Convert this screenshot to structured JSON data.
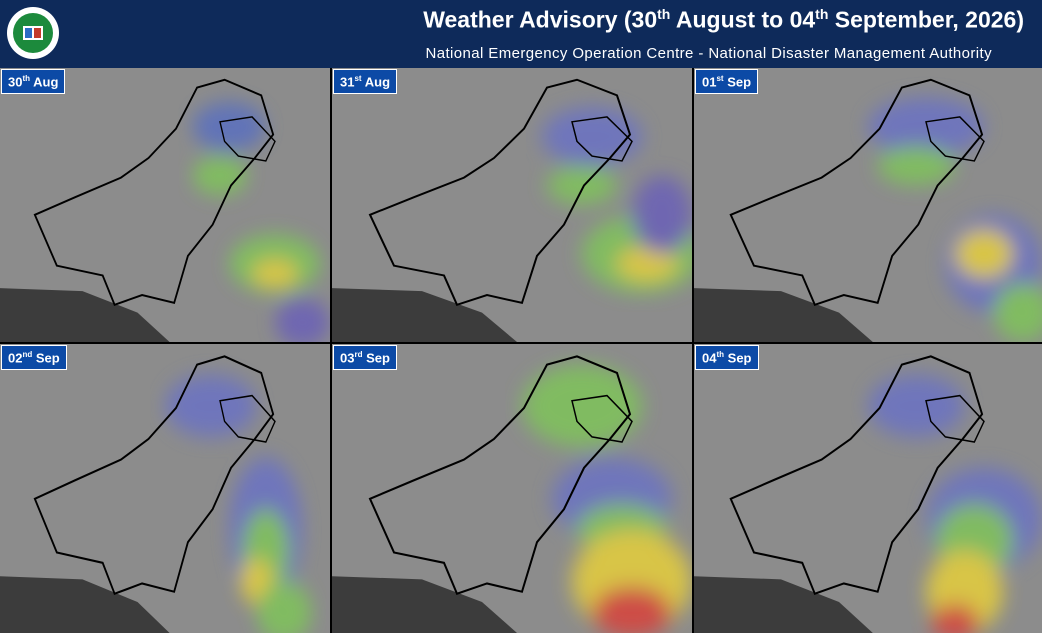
{
  "header": {
    "title": [
      "Weather Advisory (30",
      "th",
      " August to 04",
      "th",
      " September, 2026)"
    ],
    "subtitle": "National Emergency Operation Centre - National Disaster Management Authority"
  },
  "panels": [
    {
      "day": "30",
      "suffix": "th",
      "month": "Aug"
    },
    {
      "day": "31",
      "suffix": "st",
      "month": "Aug"
    },
    {
      "day": "01",
      "suffix": "st",
      "month": "Sep"
    },
    {
      "day": "02",
      "suffix": "nd",
      "month": "Sep"
    },
    {
      "day": "03",
      "suffix": "rd",
      "month": "Sep"
    },
    {
      "day": "04",
      "suffix": "th",
      "month": "Sep"
    }
  ]
}
